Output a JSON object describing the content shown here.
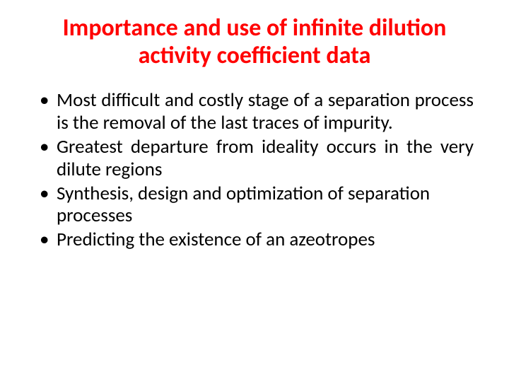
{
  "title": {
    "text": "Importance and use of infinite dilution activity coefficient data",
    "color": "#ff0000",
    "fontsize": 34
  },
  "bullets": {
    "fontsize": 27,
    "color": "#000000",
    "items": [
      {
        "text": "Most difficult and costly stage of a separation process is the removal of the last traces of impurity.",
        "justify": true
      },
      {
        "text": "Greatest departure from ideality occurs in the very dilute regions",
        "justify": true
      },
      {
        "text": "Synthesis, design and optimization of separation processes",
        "justify": false
      },
      {
        "text": "Predicting the existence of an azeotropes",
        "justify": false
      }
    ]
  },
  "background_color": "#ffffff"
}
